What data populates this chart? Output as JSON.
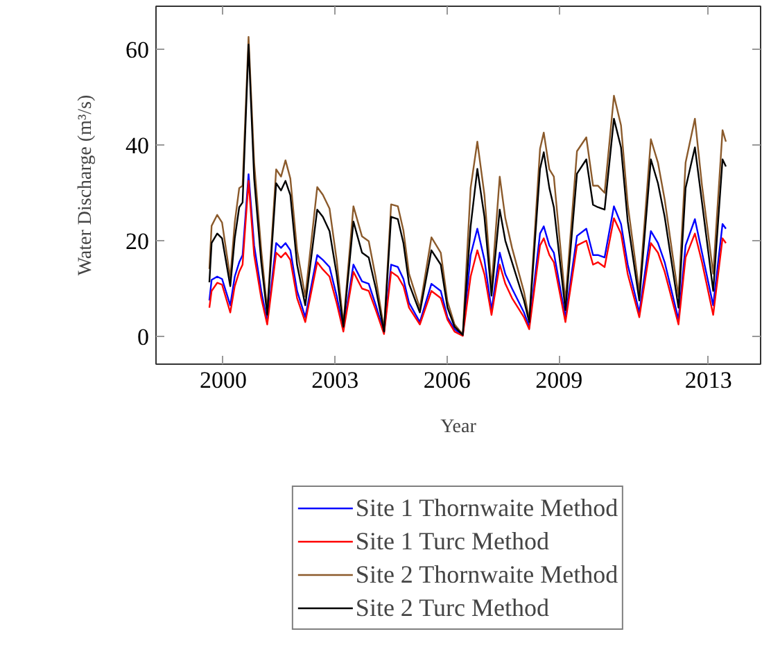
{
  "chart_data": {
    "type": "line",
    "xlabel": "Year",
    "ylabel": "Water Discharge (m³/s)",
    "x": [
      1999.63,
      1999.69,
      1999.84,
      1999.97,
      2000.19,
      2000.31,
      2000.43,
      2000.52,
      2000.68,
      2000.83,
      2001.02,
      2001.18,
      2001.42,
      2001.55,
      2001.67,
      2001.8,
      2001.98,
      2002.2,
      2002.52,
      2002.67,
      2002.85,
      2003.04,
      2003.22,
      2003.49,
      2003.72,
      2003.9,
      2004.09,
      2004.31,
      2004.5,
      2004.68,
      2004.83,
      2004.98,
      2005.27,
      2005.58,
      2005.83,
      2006.01,
      2006.2,
      2006.42,
      2006.63,
      2006.81,
      2007.0,
      2007.19,
      2007.41,
      2007.56,
      2007.74,
      2008.06,
      2008.2,
      2008.49,
      2008.59,
      2008.74,
      2008.86,
      2009.17,
      2009.48,
      2009.73,
      2009.91,
      2010.04,
      2010.22,
      2010.47,
      2010.66,
      2010.84,
      2011.15,
      2011.46,
      2011.65,
      2011.83,
      2012.2,
      2012.39,
      2012.64,
      2012.83,
      2013.13,
      2013.38,
      2013.47
    ],
    "series": [
      {
        "name": "Site 1 Thornwaite Method",
        "color": "#0000ff",
        "values": [
          7.5,
          11.8,
          12.5,
          12.0,
          6.5,
          12.5,
          15.5,
          17.0,
          33.9,
          19.0,
          9.5,
          3.0,
          19.5,
          18.5,
          19.5,
          18.0,
          9.5,
          4.0,
          17.0,
          16.0,
          14.5,
          8.5,
          1.5,
          15.0,
          11.5,
          11.0,
          6.5,
          0.8,
          15.0,
          14.5,
          12.0,
          7.0,
          3.0,
          11.0,
          9.5,
          4.0,
          1.5,
          0.2,
          17.0,
          22.5,
          16.0,
          5.5,
          17.5,
          13.0,
          10.0,
          5.0,
          2.0,
          21.5,
          23.0,
          19.0,
          17.5,
          4.0,
          21.0,
          22.5,
          17.0,
          17.0,
          16.5,
          27.2,
          23.5,
          15.0,
          5.0,
          22.0,
          19.5,
          15.5,
          3.5,
          19.0,
          24.5,
          17.5,
          6.5,
          23.5,
          22.5
        ]
      },
      {
        "name": "Site 1 Turc Method",
        "color": "#ff0000",
        "values": [
          6.0,
          9.5,
          11.2,
          10.8,
          5.0,
          10.5,
          13.5,
          15.0,
          32.5,
          17.0,
          8.0,
          2.5,
          17.5,
          16.5,
          17.5,
          16.0,
          8.0,
          3.0,
          15.5,
          14.0,
          12.5,
          7.0,
          1.0,
          13.5,
          10.0,
          9.5,
          5.5,
          0.5,
          13.5,
          12.5,
          10.5,
          6.0,
          2.5,
          9.5,
          8.0,
          3.5,
          1.0,
          0.1,
          12.5,
          18.0,
          13.0,
          4.5,
          15.0,
          11.0,
          8.0,
          4.0,
          1.5,
          19.0,
          20.5,
          17.0,
          15.5,
          3.0,
          19.0,
          20.0,
          15.0,
          15.5,
          14.5,
          24.7,
          21.5,
          13.0,
          4.0,
          19.5,
          17.5,
          13.5,
          2.5,
          16.5,
          21.5,
          15.5,
          4.5,
          20.5,
          19.5
        ]
      },
      {
        "name": "Site 2 Thornwaite Method",
        "color": "#8b5a2b",
        "values": [
          14.1,
          23.1,
          25.4,
          23.8,
          12.2,
          23.8,
          31.0,
          31.5,
          62.6,
          36.3,
          18.0,
          5.4,
          34.9,
          33.4,
          36.8,
          33.0,
          18.0,
          8.3,
          31.2,
          29.6,
          26.7,
          16.0,
          2.5,
          27.2,
          20.9,
          19.9,
          12.2,
          1.5,
          27.6,
          27.2,
          22.1,
          13.1,
          5.9,
          20.7,
          17.5,
          7.3,
          2.5,
          0.4,
          31.0,
          40.7,
          29.6,
          10.2,
          33.4,
          24.7,
          18.5,
          9.3,
          3.5,
          39.2,
          42.6,
          34.9,
          33.4,
          7.3,
          38.7,
          41.6,
          31.5,
          31.5,
          30.0,
          50.3,
          44.1,
          27.6,
          9.3,
          41.2,
          36.3,
          28.6,
          8.3,
          36.3,
          45.5,
          31.5,
          13.1,
          43.1,
          40.7
        ]
      },
      {
        "name": "Site 2 Turc Method",
        "color": "#000000",
        "values": [
          11.3,
          19.5,
          21.5,
          20.5,
          10.5,
          20.5,
          27.0,
          28.0,
          61.0,
          33.0,
          15.5,
          4.5,
          32.0,
          30.5,
          32.5,
          29.5,
          15.0,
          6.5,
          26.5,
          25.0,
          22.0,
          13.0,
          2.0,
          24.0,
          17.5,
          16.5,
          10.0,
          1.0,
          25.0,
          24.5,
          19.5,
          11.0,
          5.0,
          18.0,
          15.0,
          6.0,
          2.0,
          0.3,
          23.0,
          35.0,
          25.0,
          8.5,
          26.5,
          20.0,
          15.5,
          7.5,
          3.0,
          35.0,
          38.5,
          31.0,
          27.0,
          5.5,
          34.0,
          37.0,
          27.5,
          27.0,
          26.5,
          45.5,
          39.5,
          24.0,
          7.5,
          37.0,
          32.0,
          25.0,
          6.0,
          31.0,
          39.5,
          28.0,
          9.5,
          37.0,
          35.5
        ]
      }
    ],
    "xlim": [
      1998.2,
      2014.4
    ],
    "ylim": [
      -5.8,
      69
    ],
    "xticks": [
      2000,
      2003,
      2006,
      2009,
      2013
    ],
    "yticks": [
      0,
      20,
      40,
      60
    ],
    "grid": false,
    "legend": "bottom",
    "marker": "none",
    "line_style": "solid"
  }
}
